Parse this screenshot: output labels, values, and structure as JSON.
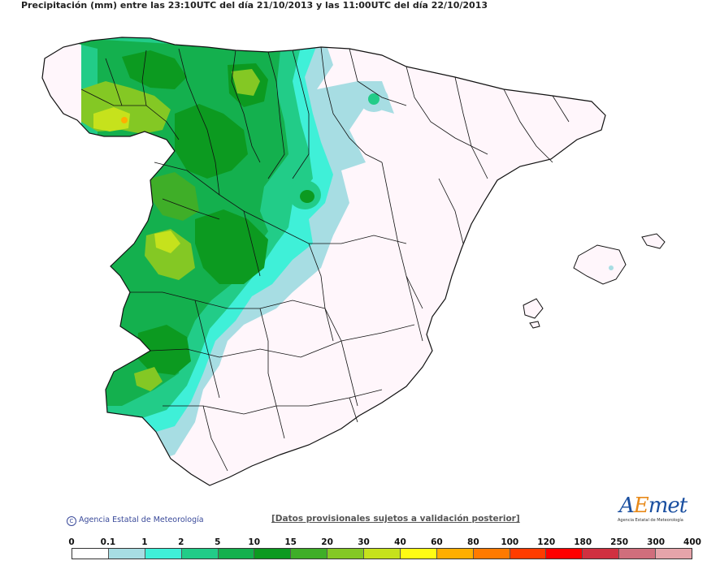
{
  "title": "Precipitación (mm) entre las 23:10UTC del día 21/10/2013 y las 11:00UTC del día 22/10/2013",
  "copyright": "Agencia Estatal de Meteorología",
  "disclaimer": "[Datos provisionales sujetos a validación posterior]",
  "logo": {
    "text_a": "A",
    "text_e": "E",
    "text_met": "met",
    "subtitle": "Agencia Estatal de Meteorología"
  },
  "legend": {
    "labels": [
      "0",
      "0.1",
      "1",
      "2",
      "5",
      "10",
      "15",
      "20",
      "30",
      "40",
      "60",
      "80",
      "100",
      "120",
      "180",
      "250",
      "300",
      "400"
    ],
    "colors": [
      "#ffffff",
      "#a7dde3",
      "#3ff0d8",
      "#22cc88",
      "#14b04e",
      "#0c9a20",
      "#3fae28",
      "#84c824",
      "#c6e21c",
      "#fffc14",
      "#ffae00",
      "#ff7a00",
      "#ff3c00",
      "#ff0000",
      "#d03040",
      "#d06e7c",
      "#e6a4aa"
    ]
  },
  "colors": {
    "dry": "#fff6fb",
    "border": "#111111"
  }
}
